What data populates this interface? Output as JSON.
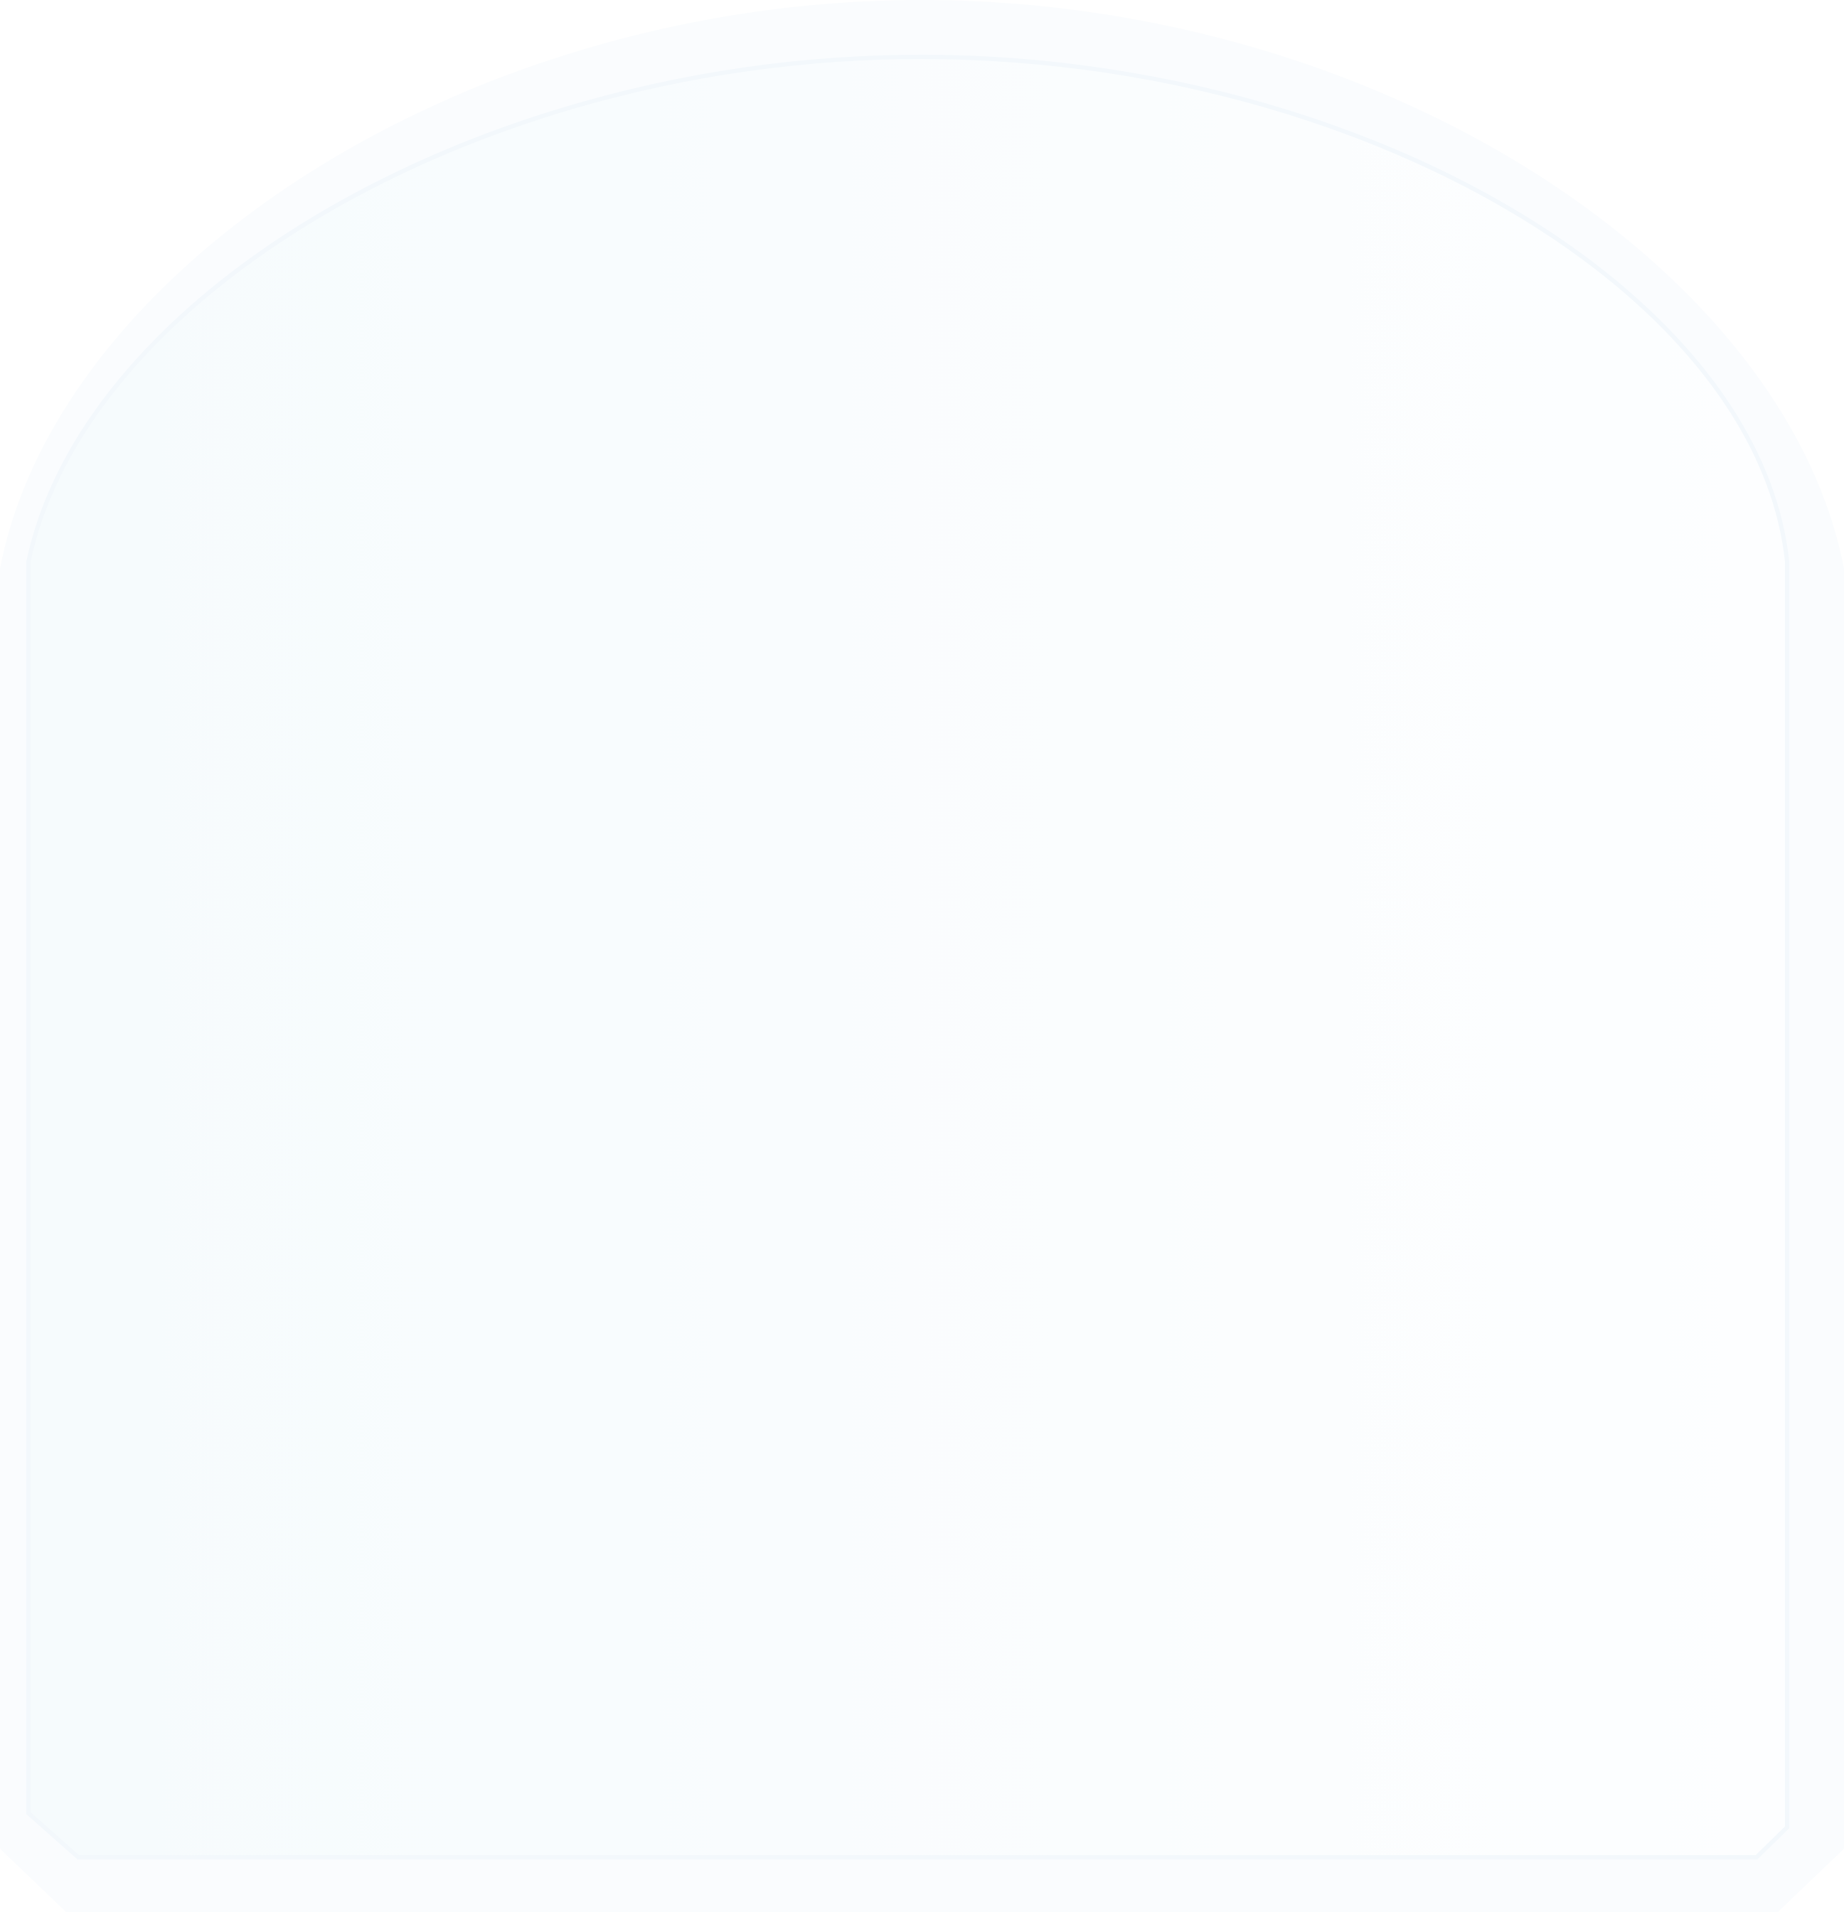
{
  "shape": {
    "kind": "arch-card",
    "colors": {
      "background": "#ffffff",
      "outer_fill": "#fafcfe",
      "inner_fill_left": "#f6fbfd",
      "inner_fill_right": "#fdfeff",
      "border_stroke": "#f3f8fc"
    }
  }
}
